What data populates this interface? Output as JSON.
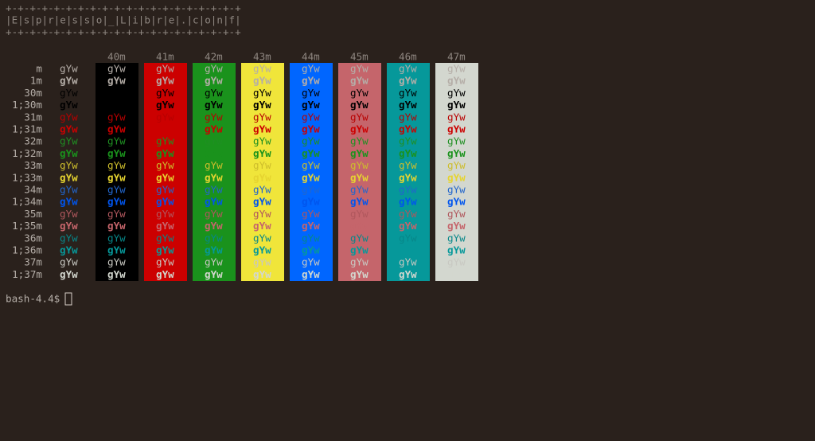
{
  "banner": [
    "+-+-+-+-+-+-+-+-+-+-+-+-+-+-+-+-+-+-+-+",
    "|E|s|p|r|e|s|s|o|_|L|i|b|r|e|.|c|o|n|f|",
    "+-+-+-+-+-+-+-+-+-+-+-+-+-+-+-+-+-+-+-+"
  ],
  "columns": [
    "40m",
    "41m",
    "42m",
    "43m",
    "44m",
    "45m",
    "46m",
    "47m"
  ],
  "rows": [
    "m",
    "1m",
    "30m",
    "1;30m",
    "31m",
    "1;31m",
    "32m",
    "1;32m",
    "33m",
    "1;33m",
    "34m",
    "1;34m",
    "35m",
    "1;35m",
    "36m",
    "1;36m",
    "37m",
    "1;37m"
  ],
  "sample": "gYw",
  "prompt": "bash-4.4$"
}
